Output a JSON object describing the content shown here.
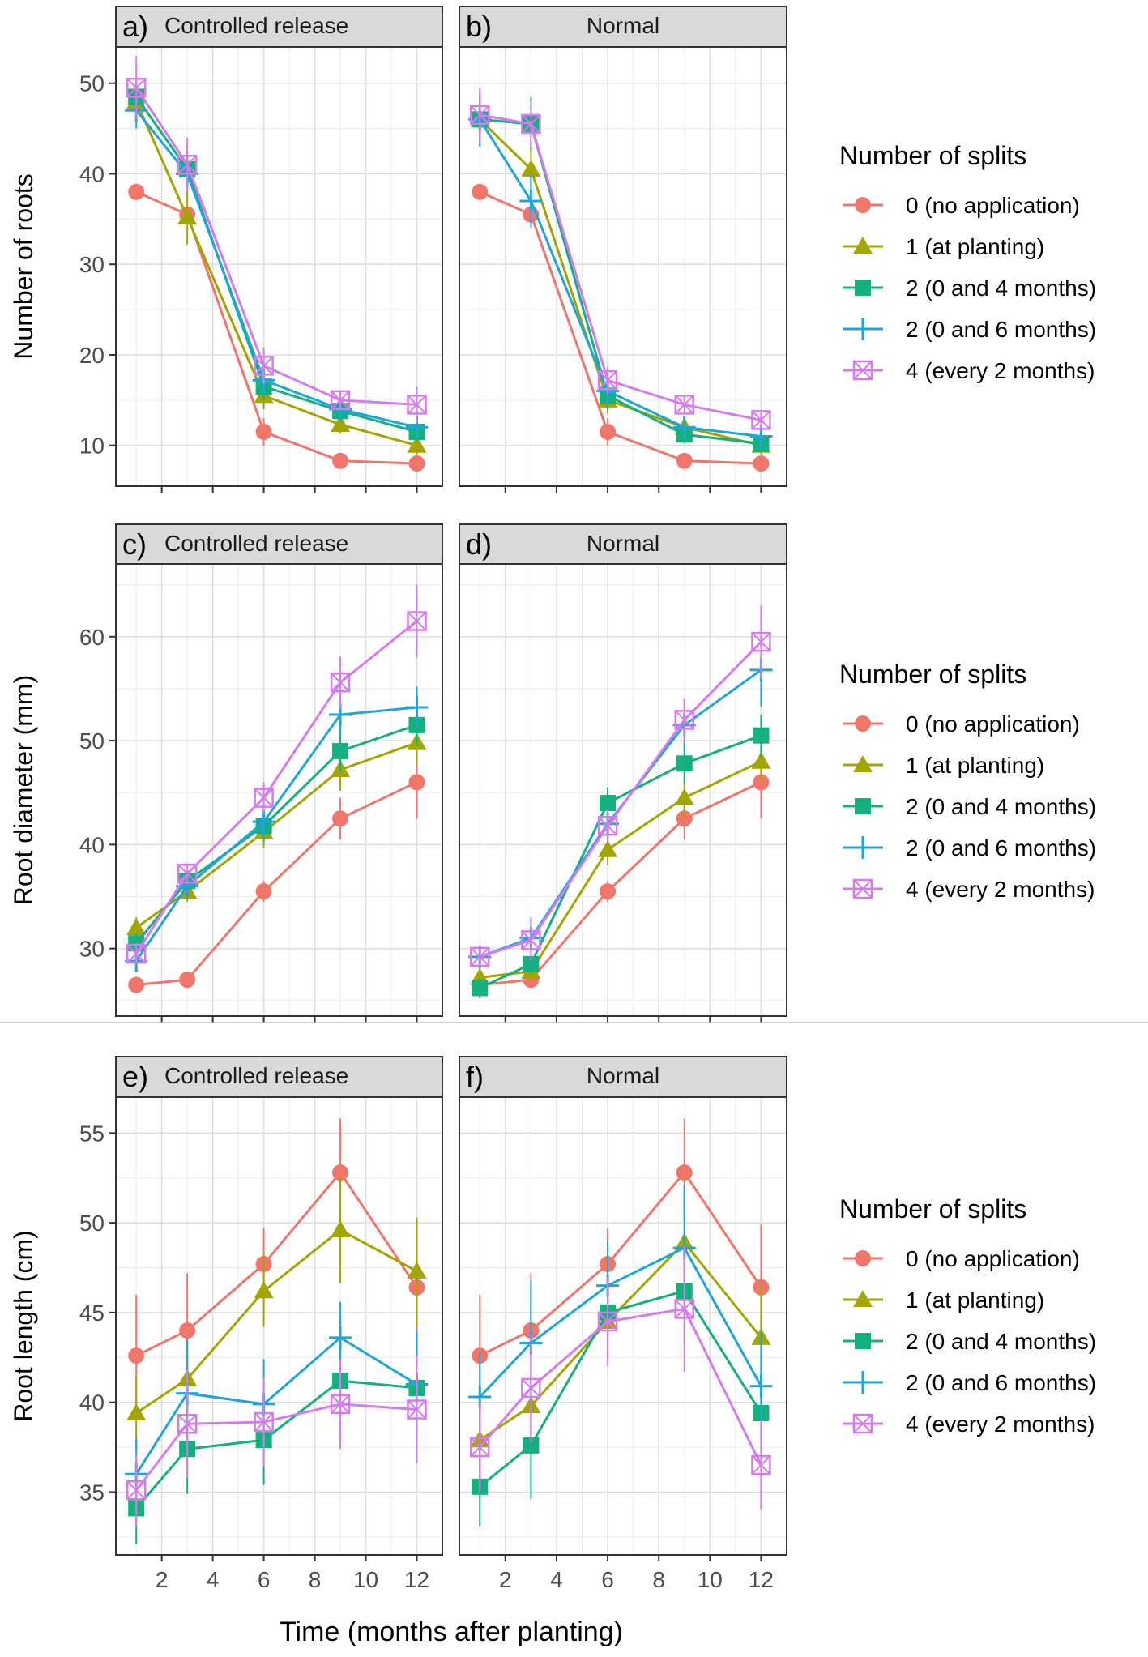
{
  "series_meta": [
    {
      "name": "0 (no application)",
      "color": "#F0766C",
      "marker": "circle"
    },
    {
      "name": "1 (at planting)",
      "color": "#A3A500",
      "marker": "triangle"
    },
    {
      "name": "2 (0 and 4 months)",
      "color": "#14B07F",
      "marker": "square"
    },
    {
      "name": "2 (0 and 6 months)",
      "color": "#1EA6DB",
      "marker": "plus"
    },
    {
      "name": "4 (every 2 months)",
      "color": "#D57BEF",
      "marker": "boxcross"
    }
  ],
  "legend_title": "Number of splits",
  "x_axis_title": "Time (months after planting)",
  "chart_data": [
    {
      "type": "line",
      "panel": "a)",
      "strip": "Controlled release",
      "ylabel": "Number of roots",
      "xlim": [
        0.2,
        13
      ],
      "ylim": [
        5.5,
        54
      ],
      "xticks": [
        2,
        4,
        6,
        8,
        10,
        12
      ],
      "yticks": [
        10,
        20,
        30,
        40,
        50
      ],
      "x": [
        1,
        3,
        6,
        9,
        12
      ],
      "series": [
        {
          "name": "0 (no application)",
          "values": [
            38,
            35.5,
            11.5,
            8.3,
            8
          ],
          "err": [
            0.5,
            1,
            1.5,
            0.5,
            0.5
          ]
        },
        {
          "name": "1 (at planting)",
          "values": [
            48,
            35.2,
            15.5,
            12.3,
            10
          ],
          "err": [
            2,
            3,
            1.5,
            1,
            1
          ]
        },
        {
          "name": "2 (0 and 4 months)",
          "values": [
            48.5,
            40.5,
            16.5,
            13.8,
            11.5
          ],
          "err": [
            2,
            2,
            1.5,
            1,
            1
          ]
        },
        {
          "name": "2 (0 and 6 months)",
          "values": [
            47,
            40,
            17.2,
            14,
            12
          ],
          "err": [
            2,
            2,
            1.5,
            1,
            1
          ]
        },
        {
          "name": "4 (every 2 months)",
          "values": [
            49.5,
            41,
            18.8,
            15,
            14.5
          ],
          "err": [
            3.5,
            3,
            2,
            1,
            2
          ]
        }
      ]
    },
    {
      "type": "line",
      "panel": "b)",
      "strip": "Normal",
      "ylabel": "",
      "xlim": [
        0.2,
        13
      ],
      "ylim": [
        5.5,
        54
      ],
      "xticks": [
        2,
        4,
        6,
        8,
        10,
        12
      ],
      "yticks": [
        10,
        20,
        30,
        40,
        50
      ],
      "x": [
        1,
        3,
        6,
        9,
        12
      ],
      "series": [
        {
          "name": "0 (no application)",
          "values": [
            38,
            35.5,
            11.5,
            8.3,
            8
          ],
          "err": [
            0.5,
            1,
            1.5,
            0.5,
            0.5
          ]
        },
        {
          "name": "1 (at planting)",
          "values": [
            46,
            40.5,
            15,
            12,
            10
          ],
          "err": [
            2,
            3,
            1.5,
            1,
            1
          ]
        },
        {
          "name": "2 (0 and 4 months)",
          "values": [
            46,
            45.5,
            15.5,
            11.2,
            10.2
          ],
          "err": [
            3,
            3,
            1.5,
            1,
            1
          ]
        },
        {
          "name": "2 (0 and 6 months)",
          "values": [
            46,
            37,
            16,
            12,
            11
          ],
          "err": [
            3,
            3,
            1.5,
            1,
            1
          ]
        },
        {
          "name": "4 (every 2 months)",
          "values": [
            46.5,
            45.5,
            17.2,
            14.5,
            12.8
          ],
          "err": [
            3,
            2.5,
            1.5,
            1,
            1
          ]
        }
      ]
    },
    {
      "type": "line",
      "panel": "c)",
      "strip": "Controlled release",
      "ylabel": "Root diameter (mm)",
      "xlim": [
        0.2,
        13
      ],
      "ylim": [
        23.5,
        67
      ],
      "xticks": [
        2,
        4,
        6,
        8,
        10,
        12
      ],
      "yticks": [
        30,
        40,
        50,
        60
      ],
      "x": [
        1,
        3,
        6,
        9,
        12
      ],
      "series": [
        {
          "name": "0 (no application)",
          "values": [
            26.5,
            27,
            35.5,
            42.5,
            46
          ],
          "err": [
            0.5,
            0.5,
            1,
            2,
            3.5
          ]
        },
        {
          "name": "1 (at planting)",
          "values": [
            32,
            35.5,
            41.2,
            47.2,
            49.8
          ],
          "err": [
            1,
            1,
            1.5,
            2,
            2
          ]
        },
        {
          "name": "2 (0 and 4 months)",
          "values": [
            30.5,
            36.5,
            41.8,
            49,
            51.5
          ],
          "err": [
            1,
            1,
            1.5,
            2,
            2
          ]
        },
        {
          "name": "2 (0 and 6 months)",
          "values": [
            28.8,
            36,
            42.2,
            52.5,
            53.2
          ],
          "err": [
            1,
            1,
            1.5,
            2,
            2
          ]
        },
        {
          "name": "4 (every 2 months)",
          "values": [
            29.5,
            37.2,
            44.5,
            55.6,
            61.5
          ],
          "err": [
            1,
            1,
            1.5,
            2.5,
            3.5
          ]
        }
      ]
    },
    {
      "type": "line",
      "panel": "d)",
      "strip": "Normal",
      "ylabel": "",
      "xlim": [
        0.2,
        13
      ],
      "ylim": [
        23.5,
        67
      ],
      "xticks": [
        2,
        4,
        6,
        8,
        10,
        12
      ],
      "yticks": [
        30,
        40,
        50,
        60
      ],
      "x": [
        1,
        3,
        6,
        9,
        12
      ],
      "series": [
        {
          "name": "0 (no application)",
          "values": [
            26.5,
            27,
            35.5,
            42.5,
            46
          ],
          "err": [
            0.5,
            0.5,
            1,
            2,
            3.5
          ]
        },
        {
          "name": "1 (at planting)",
          "values": [
            27.2,
            27.8,
            39.5,
            44.5,
            48
          ],
          "err": [
            1,
            1,
            1.5,
            2,
            2
          ]
        },
        {
          "name": "2 (0 and 4 months)",
          "values": [
            26.2,
            28.5,
            44,
            47.8,
            50.5
          ],
          "err": [
            1,
            1,
            1.5,
            2,
            2
          ]
        },
        {
          "name": "2 (0 and 6 months)",
          "values": [
            29.2,
            31,
            42,
            51.5,
            56.8
          ],
          "err": [
            1,
            2,
            1.5,
            2.5,
            3.5
          ]
        },
        {
          "name": "4 (every 2 months)",
          "values": [
            29.2,
            30.8,
            41.8,
            52,
            59.5
          ],
          "err": [
            1,
            2,
            1.5,
            2,
            3.5
          ]
        }
      ]
    },
    {
      "type": "line",
      "panel": "e)",
      "strip": "Controlled release",
      "ylabel": "Root length (cm)",
      "xlim": [
        0.2,
        13
      ],
      "ylim": [
        31.5,
        57
      ],
      "xticks": [
        2,
        4,
        6,
        8,
        10,
        12
      ],
      "yticks": [
        35,
        40,
        45,
        50,
        55
      ],
      "x": [
        1,
        3,
        6,
        9,
        12
      ],
      "series": [
        {
          "name": "0 (no application)",
          "values": [
            42.6,
            44,
            47.7,
            52.8,
            46.4
          ],
          "err": [
            3.4,
            3.2,
            2,
            3,
            3.5
          ]
        },
        {
          "name": "1 (at planting)",
          "values": [
            39.4,
            41.3,
            46.2,
            49.6,
            47.3
          ],
          "err": [
            2,
            2,
            2,
            3,
            3
          ]
        },
        {
          "name": "2 (0 and 4 months)",
          "values": [
            34.1,
            37.4,
            37.9,
            41.2,
            40.8
          ],
          "err": [
            2,
            2.5,
            2.5,
            2.5,
            3
          ]
        },
        {
          "name": "2 (0 and 6 months)",
          "values": [
            36,
            40.5,
            39.9,
            43.6,
            41
          ],
          "err": [
            2,
            3,
            2.5,
            2,
            3
          ]
        },
        {
          "name": "4 (every 2 months)",
          "values": [
            35.1,
            38.8,
            38.9,
            39.9,
            39.6
          ],
          "err": [
            2,
            3,
            2.5,
            2.5,
            3
          ]
        }
      ]
    },
    {
      "type": "line",
      "panel": "f)",
      "strip": "Normal",
      "ylabel": "",
      "xlim": [
        0.2,
        13
      ],
      "ylim": [
        31.5,
        57
      ],
      "xticks": [
        2,
        4,
        6,
        8,
        10,
        12
      ],
      "yticks": [
        35,
        40,
        45,
        50,
        55
      ],
      "x": [
        1,
        3,
        6,
        9,
        12
      ],
      "series": [
        {
          "name": "0 (no application)",
          "values": [
            42.6,
            44,
            47.7,
            52.8,
            46.4
          ],
          "err": [
            3.4,
            3.2,
            2,
            3,
            3.5
          ]
        },
        {
          "name": "1 (at planting)",
          "values": [
            37.9,
            39.8,
            44.5,
            48.9,
            43.6
          ],
          "err": [
            2,
            2.5,
            2,
            3,
            3
          ]
        },
        {
          "name": "2 (0 and 4 months)",
          "values": [
            35.3,
            37.6,
            45,
            46.2,
            39.4
          ],
          "err": [
            2.2,
            3,
            2.5,
            3,
            3
          ]
        },
        {
          "name": "2 (0 and 6 months)",
          "values": [
            40.3,
            43.3,
            46.5,
            48.6,
            40.9
          ],
          "err": [
            2.5,
            3.5,
            2.5,
            3.5,
            3
          ]
        },
        {
          "name": "4 (every 2 months)",
          "values": [
            37.5,
            40.8,
            44.5,
            45.2,
            36.5
          ],
          "err": [
            2.5,
            3,
            2.5,
            3.5,
            2.5
          ]
        }
      ]
    }
  ]
}
